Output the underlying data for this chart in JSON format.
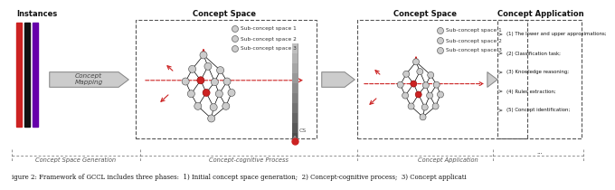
{
  "title_text": "igure 2: Framework of GCCL includes three phases:  1) Initial concept space generation;  2) Concept-cognitive process;  3) Concept applicati",
  "section1_title": "Instances",
  "section2_title": "Concept Space",
  "section3_title": "Concept Space",
  "section4_title": "Concept Application",
  "concept_mapping_label": "Concept\nMapping",
  "phase_labels": [
    "Concept Space Generation",
    "Concept-cognitive Process",
    "Concept Application"
  ],
  "legend1": [
    "Sub-concept space 1",
    "Sub-concept space 2",
    "Sub-concept space 3"
  ],
  "legend2": [
    "Sub-concept space 1",
    "Sub-concept space 2",
    "Sub-concept space 3"
  ],
  "app_items": [
    "(1) The lower and upper approximations;",
    "(2) Classification task;",
    "(3) Knowledge reasoning;",
    "(4) Rules extraction;",
    "(5) Concept identification;"
  ],
  "bg_color": "#ffffff",
  "stripe_colors": [
    "#cc2222",
    "#111111",
    "#6600aa"
  ]
}
